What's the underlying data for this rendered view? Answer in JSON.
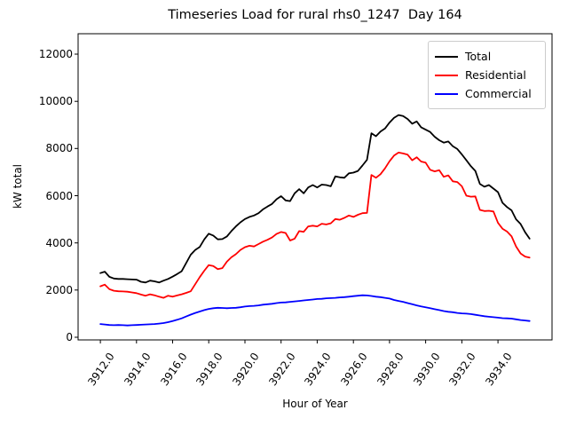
{
  "chart_data": {
    "type": "line",
    "title": "Timeseries Load for rural rhs0_1247  Day 164",
    "xlabel": "Hour of Year",
    "ylabel": "kW total",
    "grid": false,
    "legend_position": "upper right",
    "x_start": 3912.0,
    "x_step": 0.25,
    "n_points": 96,
    "xlim": [
      3910.77,
      3936.99
    ],
    "ylim": [
      -113,
      12866
    ],
    "xtick_values": [
      3912,
      3914,
      3916,
      3918,
      3920,
      3922,
      3924,
      3926,
      3928,
      3930,
      3932,
      3934
    ],
    "xtick_labels": [
      "3912.0",
      "3914.0",
      "3916.0",
      "3918.0",
      "3920.0",
      "3922.0",
      "3924.0",
      "3926.0",
      "3928.0",
      "3930.0",
      "3932.0",
      "3934.0"
    ],
    "ytick_values": [
      0,
      2000,
      4000,
      6000,
      8000,
      10000,
      12000
    ],
    "ytick_labels": [
      "0",
      "2000",
      "4000",
      "6000",
      "8000",
      "10000",
      "12000"
    ],
    "series": [
      {
        "name": "Total",
        "color": "#000000",
        "values": [
          2720,
          2780,
          2560,
          2490,
          2470,
          2470,
          2460,
          2450,
          2440,
          2350,
          2320,
          2400,
          2370,
          2320,
          2400,
          2470,
          2570,
          2680,
          2800,
          3150,
          3500,
          3700,
          3830,
          4150,
          4390,
          4310,
          4150,
          4160,
          4270,
          4500,
          4700,
          4870,
          5010,
          5100,
          5160,
          5260,
          5420,
          5540,
          5650,
          5850,
          5980,
          5800,
          5770,
          6100,
          6280,
          6100,
          6350,
          6450,
          6350,
          6470,
          6450,
          6400,
          6820,
          6780,
          6760,
          6950,
          6980,
          7050,
          7280,
          7520,
          8650,
          8520,
          8720,
          8850,
          9100,
          9300,
          9420,
          9380,
          9250,
          9050,
          9150,
          8900,
          8800,
          8700,
          8500,
          8350,
          8250,
          8300,
          8100,
          7980,
          7750,
          7500,
          7250,
          7050,
          6500,
          6380,
          6450,
          6300,
          6150,
          5700,
          5520,
          5380,
          5000,
          4800,
          4450,
          4180
        ]
      },
      {
        "name": "Residential",
        "color": "#ff0000",
        "values": [
          2160,
          2230,
          2040,
          1970,
          1950,
          1940,
          1930,
          1900,
          1870,
          1810,
          1760,
          1820,
          1780,
          1720,
          1670,
          1760,
          1720,
          1770,
          1820,
          1880,
          1950,
          2250,
          2550,
          2820,
          3060,
          3020,
          2890,
          2930,
          3200,
          3390,
          3520,
          3700,
          3820,
          3880,
          3850,
          3950,
          4050,
          4130,
          4230,
          4380,
          4460,
          4420,
          4100,
          4180,
          4500,
          4470,
          4700,
          4730,
          4700,
          4810,
          4780,
          4830,
          5010,
          4980,
          5060,
          5160,
          5100,
          5190,
          5260,
          5270,
          6880,
          6760,
          6910,
          7160,
          7460,
          7700,
          7830,
          7790,
          7740,
          7500,
          7630,
          7450,
          7400,
          7100,
          7030,
          7080,
          6800,
          6860,
          6610,
          6580,
          6400,
          6000,
          5960,
          5970,
          5400,
          5350,
          5360,
          5330,
          4850,
          4600,
          4480,
          4280,
          3850,
          3550,
          3420,
          3380
        ]
      },
      {
        "name": "Commercial",
        "color": "#0000ff",
        "values": [
          560,
          540,
          520,
          510,
          520,
          510,
          500,
          510,
          520,
          530,
          540,
          550,
          560,
          580,
          600,
          640,
          690,
          740,
          800,
          880,
          960,
          1030,
          1090,
          1150,
          1200,
          1230,
          1250,
          1240,
          1230,
          1240,
          1250,
          1270,
          1300,
          1320,
          1330,
          1350,
          1380,
          1400,
          1420,
          1450,
          1470,
          1480,
          1500,
          1520,
          1540,
          1560,
          1580,
          1600,
          1620,
          1630,
          1650,
          1660,
          1670,
          1690,
          1700,
          1720,
          1740,
          1760,
          1780,
          1770,
          1750,
          1720,
          1700,
          1670,
          1640,
          1580,
          1540,
          1500,
          1450,
          1400,
          1350,
          1310,
          1270,
          1230,
          1190,
          1150,
          1110,
          1080,
          1060,
          1030,
          1010,
          1000,
          980,
          950,
          920,
          890,
          870,
          850,
          830,
          810,
          800,
          790,
          760,
          730,
          710,
          690
        ]
      }
    ]
  }
}
